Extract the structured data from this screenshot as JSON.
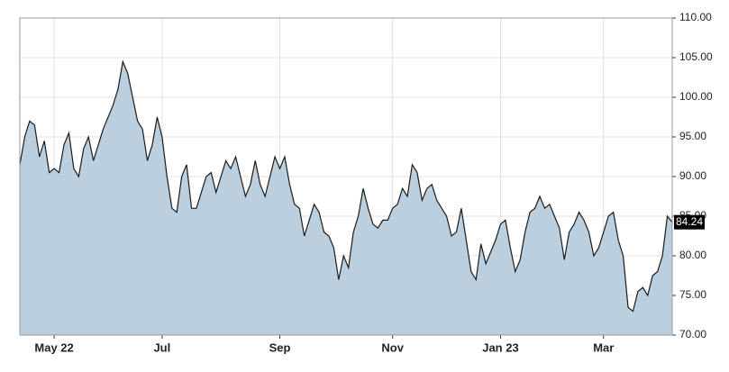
{
  "chart_data": {
    "type": "area",
    "categories": [
      null,
      null,
      null,
      null,
      null,
      null,
      null,
      "May 22",
      null,
      null,
      null,
      null,
      null,
      null,
      null,
      null,
      null,
      null,
      null,
      null,
      null,
      null,
      null,
      null,
      null,
      null,
      null,
      null,
      null,
      "Jul",
      null,
      null,
      null,
      null,
      null,
      null,
      null,
      null,
      null,
      null,
      null,
      null,
      null,
      null,
      null,
      null,
      null,
      null,
      null,
      null,
      null,
      null,
      null,
      "Sep",
      null,
      null,
      null,
      null,
      null,
      null,
      null,
      null,
      null,
      null,
      null,
      null,
      null,
      null,
      null,
      null,
      null,
      null,
      null,
      null,
      null,
      null,
      "Nov",
      null,
      null,
      null,
      null,
      null,
      null,
      null,
      null,
      null,
      null,
      null,
      null,
      null,
      null,
      null,
      null,
      null,
      null,
      null,
      null,
      null,
      "Jan 23",
      null,
      null,
      null,
      null,
      null,
      null,
      null,
      null,
      null,
      null,
      null,
      null,
      null,
      null,
      null,
      null,
      null,
      null,
      null,
      null,
      "Mar",
      null,
      null,
      null,
      null,
      null,
      null,
      null,
      null,
      null,
      null,
      null,
      null,
      null,
      null
    ],
    "values": [
      91.5,
      95,
      97,
      96.5,
      92.5,
      94.5,
      90.5,
      91,
      90.5,
      94,
      95.5,
      91,
      90,
      93.5,
      95,
      92,
      94,
      96,
      97.5,
      99,
      101,
      104.5,
      103,
      100,
      97,
      96,
      92,
      94,
      97.5,
      95,
      90,
      86,
      85.5,
      90,
      91.5,
      86,
      86,
      88,
      90,
      90.5,
      88,
      90,
      92,
      91,
      92.5,
      90,
      87.5,
      89,
      92,
      89,
      87.5,
      90,
      92.5,
      91,
      92.5,
      89,
      86.5,
      86,
      82.5,
      84.5,
      86.5,
      85.5,
      83,
      82.5,
      81,
      77,
      80,
      78.5,
      83,
      85,
      88.5,
      86,
      84,
      83.5,
      84.5,
      84.5,
      86,
      86.5,
      88.5,
      87.5,
      91.5,
      90.5,
      87,
      88.5,
      89,
      87,
      86,
      85,
      82.5,
      83,
      86,
      82,
      78,
      77,
      81.5,
      79,
      80.5,
      82,
      84,
      84.5,
      81,
      78,
      79.5,
      83,
      85.5,
      86,
      87.5,
      86,
      86.5,
      85,
      83.5,
      79.5,
      83,
      84,
      85.5,
      84.5,
      83,
      80,
      81,
      83,
      85,
      85.5,
      82,
      80,
      73.5,
      73,
      75.5,
      76,
      75,
      77.5,
      78,
      80,
      85,
      84.24
    ],
    "color": "#bccfde",
    "line_color": "#1a1a1a",
    "ylim": [
      70,
      110
    ],
    "yticks": [
      {
        "value": 70,
        "label": "70.00"
      },
      {
        "value": 75,
        "label": "75.00"
      },
      {
        "value": 80,
        "label": "80.00"
      },
      {
        "value": 85,
        "label": "85.00"
      },
      {
        "value": 90,
        "label": "90.00"
      },
      {
        "value": 95,
        "label": "95.00"
      },
      {
        "value": 100,
        "label": "100.00"
      },
      {
        "value": 105,
        "label": "105.00"
      },
      {
        "value": 110,
        "label": "110.00"
      }
    ],
    "grid": true
  }
}
